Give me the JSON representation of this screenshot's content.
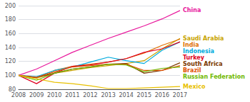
{
  "chart_data": {
    "type": "line",
    "x": [
      2008,
      2009,
      2010,
      2011,
      2012,
      2013,
      2014,
      2015,
      2016,
      2017
    ],
    "series": [
      {
        "name": "China",
        "color": "#e8189c",
        "values": [
          100,
          109,
          121,
          133,
          143,
          153,
          162,
          171,
          181,
          193
        ]
      },
      {
        "name": "Saudi Arabia",
        "color": "#c8a400",
        "values": [
          100,
          96,
          103,
          107,
          111,
          114,
          117,
          121,
          138,
          153
        ]
      },
      {
        "name": "India",
        "color": "#e07000",
        "values": [
          100,
          97,
          107,
          113,
          116,
          119,
          124,
          132,
          143,
          152
        ]
      },
      {
        "name": "Indonesia",
        "color": "#00aadd",
        "values": [
          100,
          98,
          107,
          112,
          119,
          126,
          121,
          117,
          136,
          148
        ]
      },
      {
        "name": "Turkey",
        "color": "#e00020",
        "values": [
          100,
          88,
          103,
          113,
          115,
          119,
          124,
          133,
          138,
          148
        ]
      },
      {
        "name": "South Africa",
        "color": "#7b3800",
        "values": [
          100,
          97,
          103,
          109,
          112,
          116,
          117,
          103,
          107,
          118
        ]
      },
      {
        "name": "Brazil",
        "color": "#e05000",
        "values": [
          100,
          97,
          105,
          112,
          114,
          116,
          116,
          107,
          107,
          114
        ]
      },
      {
        "name": "Russian Federation",
        "color": "#70b800",
        "values": [
          100,
          93,
          103,
          109,
          112,
          116,
          115,
          105,
          110,
          112
        ]
      },
      {
        "name": "Mexico",
        "color": "#e8c000",
        "values": [
          100,
          95,
          90,
          88,
          85,
          81,
          81,
          82,
          83,
          84
        ]
      }
    ],
    "xlim": [
      2008,
      2017
    ],
    "ylim": [
      80,
      200
    ],
    "xticks": [
      2008,
      2009,
      2010,
      2011,
      2012,
      2013,
      2014,
      2015,
      2016,
      2017
    ],
    "yticks": [
      80,
      100,
      120,
      140,
      160,
      180,
      200
    ],
    "grid": true
  }
}
